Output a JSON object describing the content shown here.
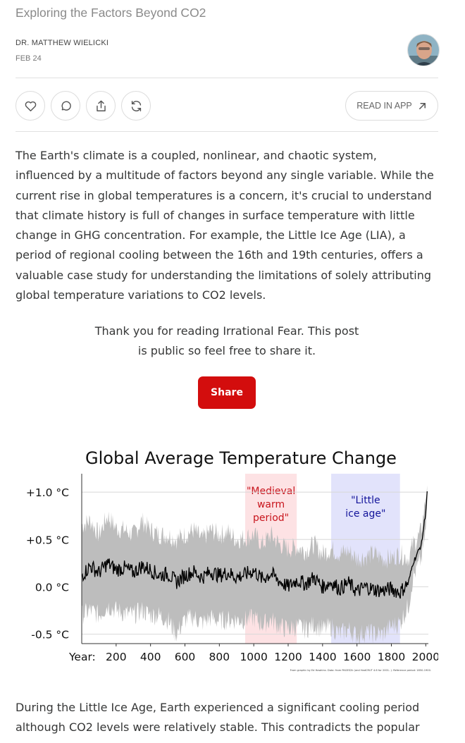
{
  "post": {
    "title": "Exploring the Factors Beyond CO2",
    "author": "DR. MATTHEW WIELICKI",
    "date": "FEB 24"
  },
  "actions": {
    "like_icon": "heart-icon",
    "comment_icon": "comment-icon",
    "share_icon": "share-icon",
    "restack_icon": "restack-icon",
    "read_in_app_label": "READ IN APP",
    "read_in_app_icon": "arrow-up-right-icon"
  },
  "content": {
    "paragraph1": "The Earth's climate is a coupled, nonlinear, and chaotic system, influenced by a multitude of factors beyond any single variable. While the current rise in global temperatures is a concern, it's crucial to understand that climate history is full of changes in surface temperature with little change in GHG concentration. For example, the Little Ice Age (LIA), a period of regional cooling between the 16th and 19th centuries, offers a valuable case study for understanding the limitations of solely attributing global temperature variations to CO2 levels.",
    "cta_text": "Thank you for reading Irrational Fear. This post is public so feel free to share it.",
    "share_label": "Share",
    "paragraph2": "During the Little Ice Age, Earth experienced a significant cooling period although CO2 levels were relatively stable. This contradicts the popular belief"
  },
  "colors": {
    "accent": "#d30d0d",
    "medieval_band": "#fde2e4",
    "little_ice_age_band": "#e2e3fb",
    "medieval_text": "#c8141c",
    "lia_text": "#12139a",
    "uncertainty": "#bdbdbd",
    "line": "#000000"
  },
  "chart_data": {
    "type": "line",
    "title": "Global Average Temperature Change",
    "xlabel": "Year:",
    "ylabel": "",
    "xlim": [
      0,
      2015
    ],
    "ylim": [
      -0.6,
      1.15
    ],
    "x_ticks": [
      200,
      400,
      600,
      800,
      1000,
      1200,
      1400,
      1600,
      1800,
      2000
    ],
    "y_ticks": [
      {
        "value": 1.0,
        "label": "+1.0 °C"
      },
      {
        "value": 0.5,
        "label": "+0.5 °C"
      },
      {
        "value": 0.0,
        "label": "0.0 °C"
      },
      {
        "value": -0.5,
        "label": "-0.5 °C"
      }
    ],
    "bands": [
      {
        "label_lines": [
          "\"Medieval",
          "warm",
          "period\""
        ],
        "start": 950,
        "end": 1250,
        "color": "#fde2e4",
        "text_color": "#c8141c"
      },
      {
        "label_lines": [
          "\"Little",
          "ice age\""
        ],
        "start": 1450,
        "end": 1850,
        "color": "#e2e3fb",
        "text_color": "#12139a"
      }
    ],
    "series": [
      {
        "x": [
          0,
          50,
          100,
          150,
          200,
          250,
          300,
          350,
          400,
          450,
          500,
          550,
          600,
          650,
          700,
          750,
          800,
          850,
          900,
          950,
          1000,
          1050,
          1100,
          1150,
          1200,
          1250,
          1300,
          1350,
          1400,
          1450,
          1500,
          1550,
          1600,
          1650,
          1700,
          1750,
          1800,
          1850,
          1900,
          1925,
          1950,
          1975,
          2000,
          2010
        ],
        "y": [
          0.12,
          0.22,
          0.15,
          0.25,
          0.18,
          0.2,
          0.15,
          0.22,
          0.18,
          0.12,
          0.14,
          0.05,
          0.12,
          0.16,
          0.1,
          0.16,
          0.12,
          0.15,
          0.1,
          0.13,
          0.17,
          0.08,
          0.14,
          0.06,
          0.0,
          0.07,
          0.03,
          0.1,
          0.0,
          0.05,
          -0.02,
          0.04,
          -0.05,
          0.0,
          -0.03,
          -0.04,
          -0.02,
          -0.06,
          0.05,
          0.25,
          0.35,
          0.45,
          0.8,
          1.05
        ],
        "lower": [
          -0.3,
          -0.25,
          -0.3,
          -0.2,
          -0.25,
          -0.28,
          -0.3,
          -0.25,
          -0.3,
          -0.3,
          -0.35,
          -0.5,
          -0.35,
          -0.32,
          -0.38,
          -0.33,
          -0.36,
          -0.35,
          -0.35,
          -0.35,
          -0.33,
          -0.4,
          -0.35,
          -0.42,
          -0.45,
          -0.42,
          -0.45,
          -0.4,
          -0.45,
          -0.42,
          -0.5,
          -0.45,
          -0.52,
          -0.48,
          -0.5,
          -0.5,
          -0.42,
          -0.38,
          -0.2,
          0.1,
          0.2,
          0.3,
          0.6,
          0.9
        ],
        "upper": [
          0.65,
          0.7,
          0.55,
          0.75,
          0.62,
          0.6,
          0.55,
          0.7,
          0.6,
          0.55,
          0.55,
          0.5,
          0.55,
          0.6,
          0.5,
          0.6,
          0.55,
          0.58,
          0.5,
          0.52,
          0.55,
          0.45,
          0.55,
          0.45,
          0.4,
          0.42,
          0.38,
          0.45,
          0.35,
          0.4,
          0.35,
          0.38,
          0.3,
          0.32,
          0.35,
          0.3,
          0.3,
          0.35,
          0.3,
          0.45,
          0.5,
          0.6,
          0.95,
          1.15
        ]
      }
    ],
    "grid": true,
    "footnote": "From graphic by Ed Hawkins.   Data: from PAGES2k (and HadCRUT 4.6 for 2001- ).   Reference period: 1850-1900."
  }
}
